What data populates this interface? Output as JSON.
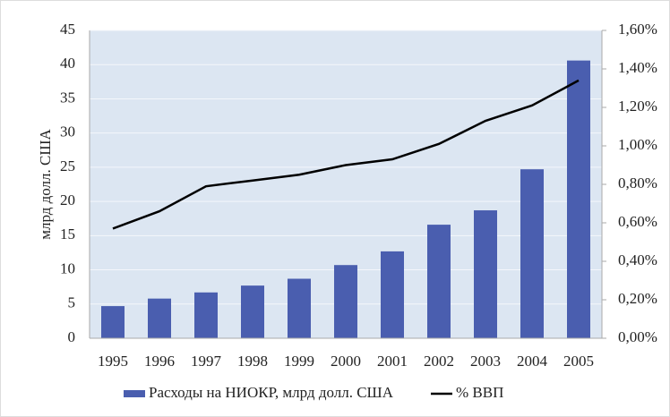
{
  "chart_data": {
    "type": "bar_line",
    "y_label": "млрд долл. США",
    "categories": [
      "1995",
      "1996",
      "1997",
      "1998",
      "1999",
      "2000",
      "2001",
      "2002",
      "2003",
      "2004",
      "2005"
    ],
    "series": [
      {
        "name": "Расходы на НИОКР, млрд долл. США",
        "type": "bar",
        "color": "#4a5eaf",
        "axis": "y",
        "values": [
          4.7,
          5.8,
          6.7,
          7.7,
          8.7,
          10.7,
          12.7,
          16.6,
          18.7,
          24.7,
          40.6
        ]
      },
      {
        "name": "% ВВП",
        "type": "line",
        "color": "#000000",
        "axis": "y2",
        "values": [
          0.57,
          0.66,
          0.79,
          0.82,
          0.85,
          0.9,
          0.93,
          1.01,
          1.13,
          1.21,
          1.34
        ]
      }
    ],
    "ylim": [
      0,
      45
    ],
    "yticks": [
      0,
      5,
      10,
      15,
      20,
      25,
      30,
      35,
      40,
      45
    ],
    "y2lim": [
      0,
      1.6
    ],
    "y2ticks": [
      {
        "value": 0,
        "label": "0,00%"
      },
      {
        "value": 0.2,
        "label": "0,20%"
      },
      {
        "value": 0.4,
        "label": "0,40%"
      },
      {
        "value": 0.6,
        "label": "0,60%"
      },
      {
        "value": 0.8,
        "label": "0,80%"
      },
      {
        "value": 1.0,
        "label": "1,00%"
      },
      {
        "value": 1.2,
        "label": "1,20%"
      },
      {
        "value": 1.4,
        "label": "1,40%"
      },
      {
        "value": 1.6,
        "label": "1,60%"
      }
    ],
    "grid": true,
    "legend": "bottom",
    "plot_background": "#dce6f2"
  }
}
